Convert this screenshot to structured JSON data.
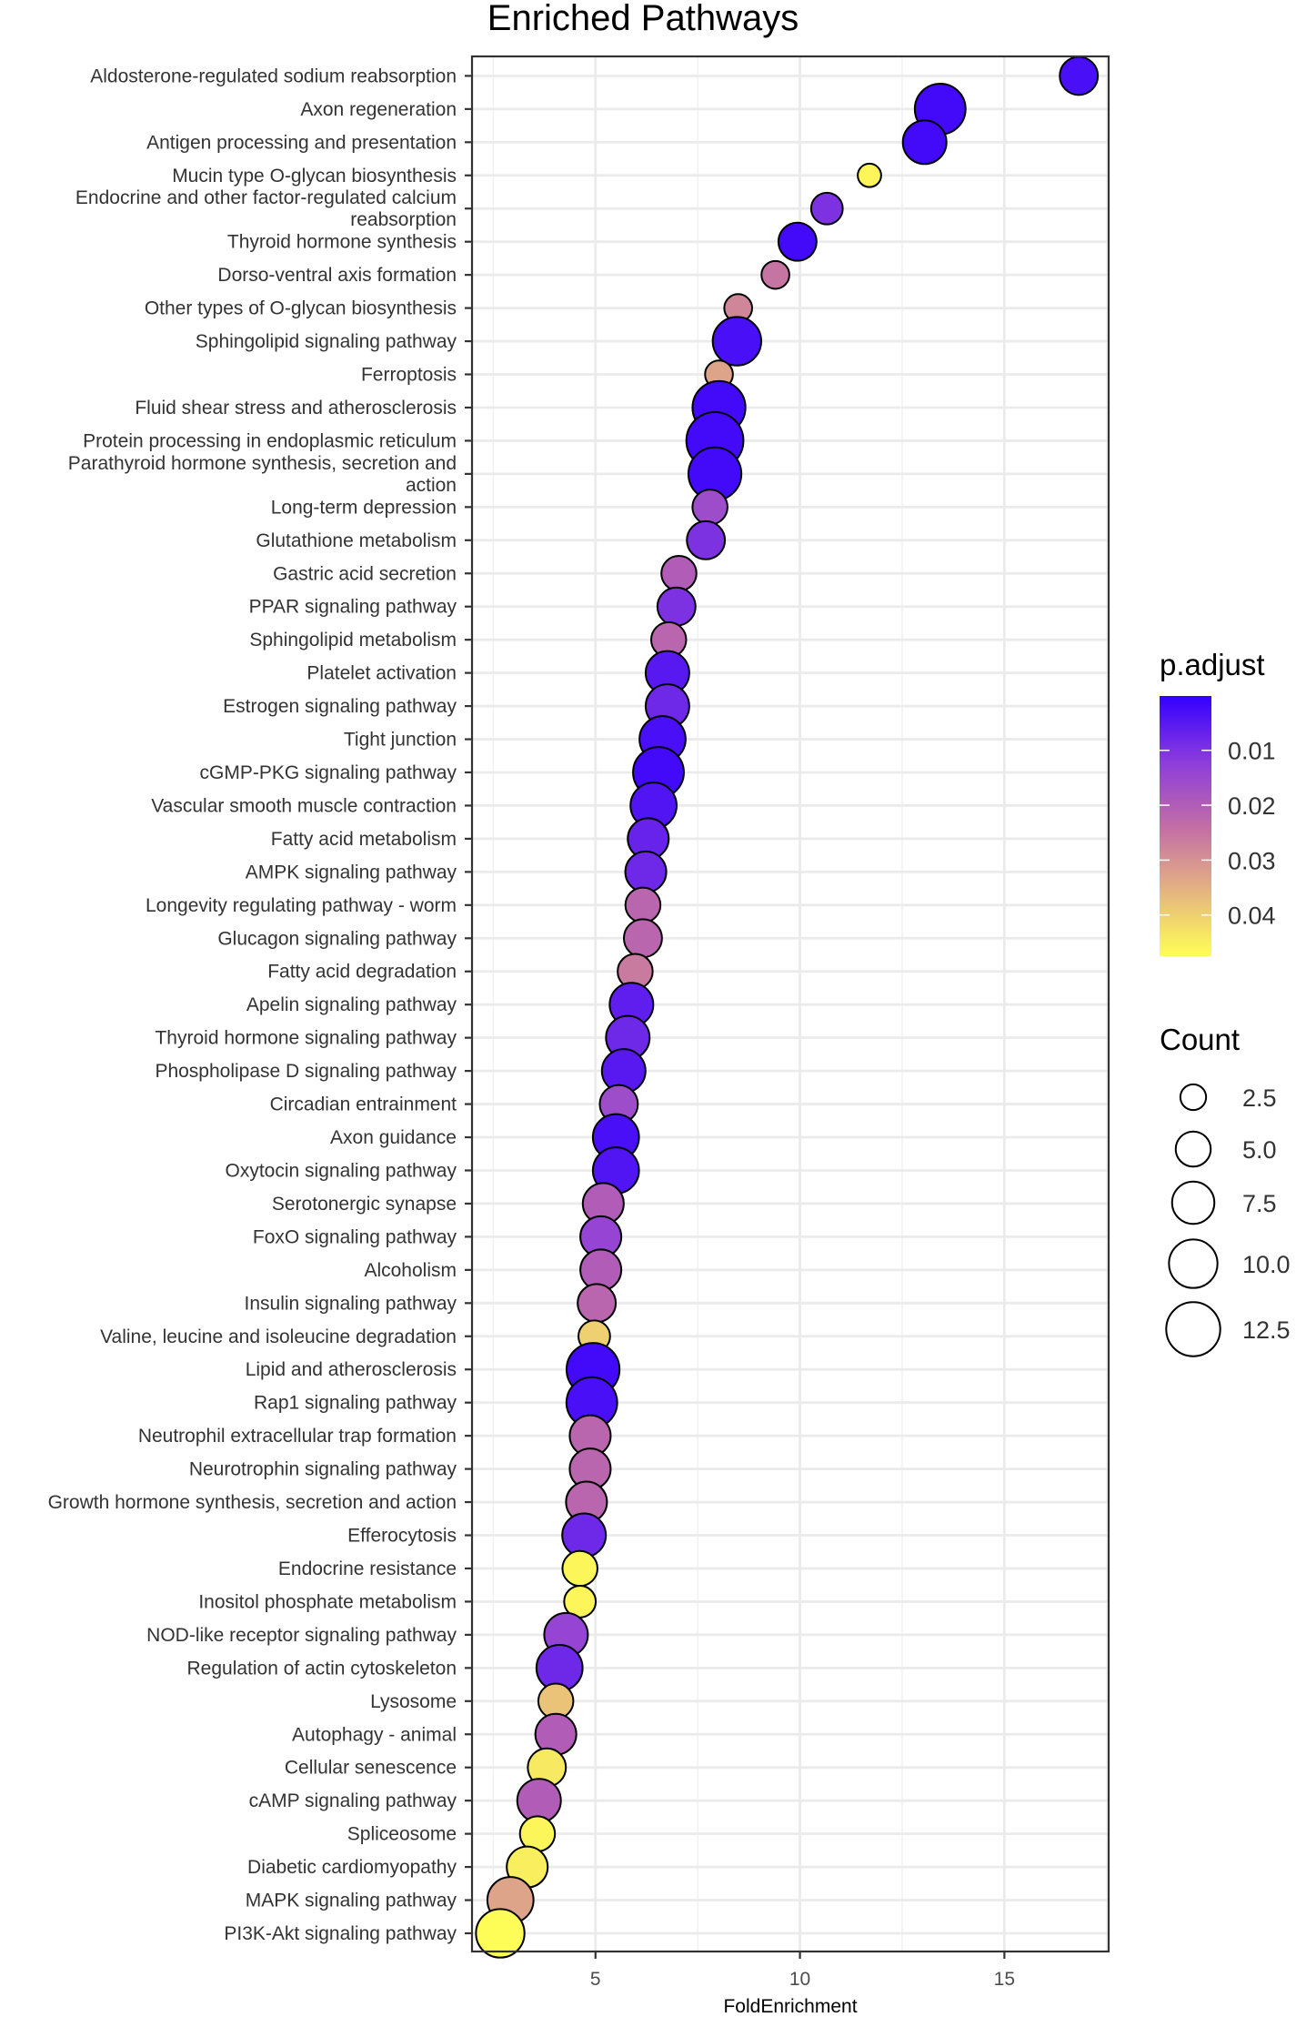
{
  "chart_data": {
    "type": "scatter",
    "title": "Enriched Pathways",
    "xlabel": "FoldEnrichment",
    "ylabel": "",
    "xlim": [
      1.98,
      17.55
    ],
    "xticks": [
      5,
      10,
      15
    ],
    "grid": true,
    "color_legend": {
      "title": "p.adjust",
      "ticks": [
        0.01,
        0.02,
        0.03,
        0.04
      ],
      "range": [
        0.0001,
        0.0475
      ],
      "low_color": "#3300ff",
      "high_color": "#ffff55",
      "placement": "right"
    },
    "size_legend": {
      "title": "Count",
      "ticks": [
        "2.5",
        "5.0",
        "7.5",
        "10.0",
        "12.5"
      ],
      "placement": "right"
    },
    "points": [
      {
        "label": [
          "Aldosterone-regulated sodium reabsorption"
        ],
        "x": 16.82,
        "count": 6,
        "p": 0.003
      },
      {
        "label": [
          "Axon regeneration"
        ],
        "x": 13.43,
        "count": 11,
        "p": 0.002
      },
      {
        "label": [
          "Antigen processing and presentation"
        ],
        "x": 13.05,
        "count": 8,
        "p": 0.002
      },
      {
        "label": [
          "Mucin type O-glycan biosynthesis"
        ],
        "x": 11.7,
        "count": 2,
        "p": 0.046
      },
      {
        "label": [
          "Endocrine and other factor-regulated calcium",
          "reabsorption"
        ],
        "x": 10.66,
        "count": 4,
        "p": 0.01
      },
      {
        "label": [
          "Thyroid hormone synthesis"
        ],
        "x": 9.94,
        "count": 6,
        "p": 0.002
      },
      {
        "label": [
          "Dorso-ventral axis formation"
        ],
        "x": 9.4,
        "count": 3,
        "p": 0.025
      },
      {
        "label": [
          "Other types of O-glycan biosynthesis"
        ],
        "x": 8.49,
        "count": 3,
        "p": 0.028
      },
      {
        "label": [
          "Sphingolipid signaling pathway"
        ],
        "x": 8.46,
        "count": 10,
        "p": 0.003
      },
      {
        "label": [
          "Ferroptosis"
        ],
        "x": 8.02,
        "count": 3,
        "p": 0.033
      },
      {
        "label": [
          "Fluid shear stress and atherosclerosis"
        ],
        "x": 8.02,
        "count": 12,
        "p": 0.002
      },
      {
        "label": [
          "Protein processing in endoplasmic reticulum"
        ],
        "x": 7.92,
        "count": 14,
        "p": 0.002
      },
      {
        "label": [
          "Parathyroid hormone synthesis, secretion and",
          "action"
        ],
        "x": 7.92,
        "count": 12,
        "p": 0.002
      },
      {
        "label": [
          "Long-term depression"
        ],
        "x": 7.8,
        "count": 5,
        "p": 0.016
      },
      {
        "label": [
          "Glutathione metabolism"
        ],
        "x": 7.7,
        "count": 6,
        "p": 0.01
      },
      {
        "label": [
          "Gastric acid secretion"
        ],
        "x": 7.04,
        "count": 5,
        "p": 0.02
      },
      {
        "label": [
          "PPAR signaling pathway"
        ],
        "x": 6.98,
        "count": 6,
        "p": 0.01
      },
      {
        "label": [
          "Sphingolipid metabolism"
        ],
        "x": 6.79,
        "count": 5,
        "p": 0.022
      },
      {
        "label": [
          "Platelet activation"
        ],
        "x": 6.76,
        "count": 8,
        "p": 0.005
      },
      {
        "label": [
          "Estrogen signaling pathway"
        ],
        "x": 6.76,
        "count": 8,
        "p": 0.008
      },
      {
        "label": [
          "Tight junction"
        ],
        "x": 6.64,
        "count": 9,
        "p": 0.003
      },
      {
        "label": [
          "cGMP-PKG signaling pathway"
        ],
        "x": 6.54,
        "count": 11,
        "p": 0.002
      },
      {
        "label": [
          "Vascular smooth muscle contraction"
        ],
        "x": 6.42,
        "count": 9,
        "p": 0.004
      },
      {
        "label": [
          "Fatty acid metabolism"
        ],
        "x": 6.29,
        "count": 7,
        "p": 0.007
      },
      {
        "label": [
          "AMPK signaling pathway"
        ],
        "x": 6.23,
        "count": 7,
        "p": 0.008
      },
      {
        "label": [
          "Longevity regulating pathway - worm"
        ],
        "x": 6.16,
        "count": 5,
        "p": 0.022
      },
      {
        "label": [
          "Glucagon signaling pathway"
        ],
        "x": 6.16,
        "count": 6,
        "p": 0.022
      },
      {
        "label": [
          "Fatty acid degradation"
        ],
        "x": 5.97,
        "count": 5,
        "p": 0.026
      },
      {
        "label": [
          "Apelin signaling pathway"
        ],
        "x": 5.88,
        "count": 8,
        "p": 0.006
      },
      {
        "label": [
          "Thyroid hormone signaling pathway"
        ],
        "x": 5.79,
        "count": 8,
        "p": 0.008
      },
      {
        "label": [
          "Phospholipase D signaling pathway"
        ],
        "x": 5.69,
        "count": 8,
        "p": 0.005
      },
      {
        "label": [
          "Circadian entrainment"
        ],
        "x": 5.57,
        "count": 6,
        "p": 0.016
      },
      {
        "label": [
          "Axon guidance"
        ],
        "x": 5.5,
        "count": 9,
        "p": 0.003
      },
      {
        "label": [
          "Oxytocin signaling pathway"
        ],
        "x": 5.5,
        "count": 9,
        "p": 0.004
      },
      {
        "label": [
          "Serotonergic synapse"
        ],
        "x": 5.19,
        "count": 7,
        "p": 0.02
      },
      {
        "label": [
          "FoxO signaling pathway"
        ],
        "x": 5.13,
        "count": 7,
        "p": 0.014
      },
      {
        "label": [
          "Alcoholism"
        ],
        "x": 5.13,
        "count": 7,
        "p": 0.02
      },
      {
        "label": [
          "Insulin signaling pathway"
        ],
        "x": 5.03,
        "count": 6,
        "p": 0.022
      },
      {
        "label": [
          "Valine, leucine and isoleucine degradation"
        ],
        "x": 4.97,
        "count": 4,
        "p": 0.04
      },
      {
        "label": [
          "Lipid and atherosclerosis"
        ],
        "x": 4.94,
        "count": 12,
        "p": 0.002
      },
      {
        "label": [
          "Rap1 signaling pathway"
        ],
        "x": 4.91,
        "count": 11,
        "p": 0.003
      },
      {
        "label": [
          "Neutrophil extracellular trap formation"
        ],
        "x": 4.87,
        "count": 7,
        "p": 0.022
      },
      {
        "label": [
          "Neurotrophin signaling pathway"
        ],
        "x": 4.87,
        "count": 7,
        "p": 0.022
      },
      {
        "label": [
          "Growth hormone synthesis, secretion and action"
        ],
        "x": 4.78,
        "count": 7,
        "p": 0.022
      },
      {
        "label": [
          "Efferocytosis"
        ],
        "x": 4.72,
        "count": 8,
        "p": 0.008
      },
      {
        "label": [
          "Endocrine resistance"
        ],
        "x": 4.62,
        "count": 5,
        "p": 0.046
      },
      {
        "label": [
          "Inositol phosphate metabolism"
        ],
        "x": 4.62,
        "count": 4,
        "p": 0.046
      },
      {
        "label": [
          "NOD-like receptor signaling pathway"
        ],
        "x": 4.28,
        "count": 8,
        "p": 0.014
      },
      {
        "label": [
          "Regulation of actin cytoskeleton"
        ],
        "x": 4.12,
        "count": 9,
        "p": 0.008
      },
      {
        "label": [
          "Lysosome"
        ],
        "x": 4.03,
        "count": 5,
        "p": 0.038
      },
      {
        "label": [
          "Autophagy - animal"
        ],
        "x": 4.03,
        "count": 7,
        "p": 0.02
      },
      {
        "label": [
          "Cellular senescence"
        ],
        "x": 3.81,
        "count": 6,
        "p": 0.044
      },
      {
        "label": [
          "cAMP signaling pathway"
        ],
        "x": 3.62,
        "count": 8,
        "p": 0.02
      },
      {
        "label": [
          "Spliceosome"
        ],
        "x": 3.58,
        "count": 5,
        "p": 0.046
      },
      {
        "label": [
          "Diabetic cardiomyopathy"
        ],
        "x": 3.33,
        "count": 7,
        "p": 0.045
      },
      {
        "label": [
          "MAPK signaling pathway"
        ],
        "x": 2.92,
        "count": 9,
        "p": 0.033
      },
      {
        "label": [
          "PI3K-Akt signaling pathway"
        ],
        "x": 2.67,
        "count": 10,
        "p": 0.047
      }
    ]
  }
}
